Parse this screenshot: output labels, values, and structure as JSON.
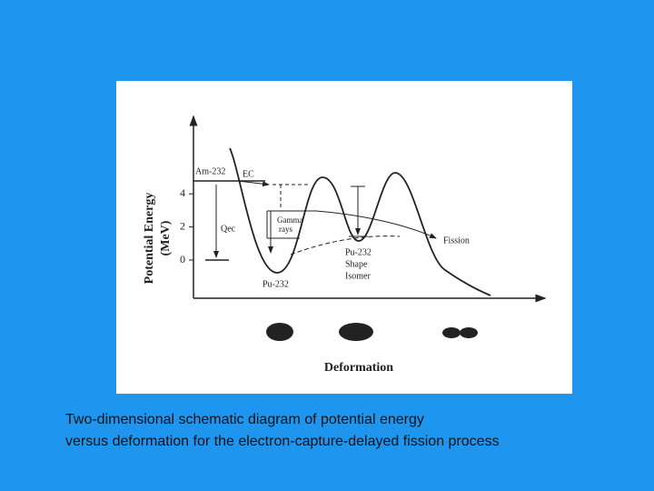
{
  "diagram": {
    "y_axis_label": [
      "Potential Energy",
      "(MeV)"
    ],
    "y_ticks": [
      4,
      2,
      0
    ],
    "x_axis_label": "Deformation",
    "labels": {
      "am232": "Am-232",
      "ec": "EC",
      "qec": "Qec",
      "gamma": [
        "Gamma",
        "rays"
      ],
      "fission": "Fission",
      "shape_isomer": [
        "Pu-232",
        "Shape",
        "Isomer"
      ],
      "pu232": "Pu-232"
    }
  },
  "caption": [
    "Two-dimensional schematic diagram of potential energy",
    "versus deformation for the electron-capture-delayed fission process"
  ]
}
